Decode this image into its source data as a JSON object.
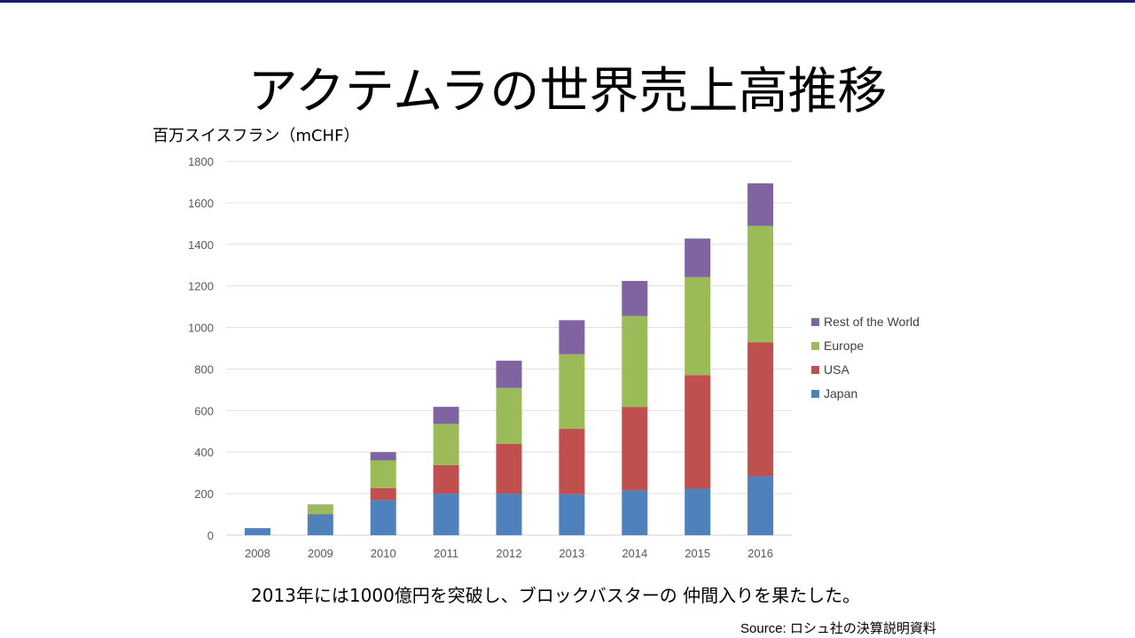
{
  "slide": {
    "title": "アクテムラの世界売上高推移",
    "caption": "2013年には1000億円を突破し、ブロックバスターの 仲間入りを果たした。",
    "source": "Source: ロシュ社の決算説明資料"
  },
  "chart_data": {
    "type": "bar",
    "stacked": true,
    "title": "",
    "ylabel": "百万スイスフラン（mCHF）",
    "xlabel": "",
    "ylim": [
      0,
      1800
    ],
    "yticks": [
      "0",
      "200",
      "400",
      "600",
      "800",
      "1000",
      "1200",
      "1400",
      "1600",
      "1800"
    ],
    "grid": true,
    "legend_position": "right",
    "categories": [
      "2008",
      "2009",
      "2010",
      "2011",
      "2012",
      "2013",
      "2014",
      "2015",
      "2016"
    ],
    "series": [
      {
        "name": "Japan",
        "color": "#4f81bd",
        "values": [
          34,
          100,
          169,
          200,
          200,
          197,
          216,
          224,
          284
        ]
      },
      {
        "name": "USA",
        "color": "#c0504d",
        "values": [
          0,
          2,
          58,
          137,
          240,
          315,
          402,
          547,
          645
        ]
      },
      {
        "name": "Europe",
        "color": "#9bbb59",
        "values": [
          0,
          44,
          133,
          199,
          269,
          359,
          437,
          471,
          560
        ]
      },
      {
        "name": "Rest of the World",
        "color": "#8064a2",
        "values": [
          0,
          2,
          40,
          82,
          131,
          164,
          169,
          186,
          205
        ]
      }
    ]
  }
}
